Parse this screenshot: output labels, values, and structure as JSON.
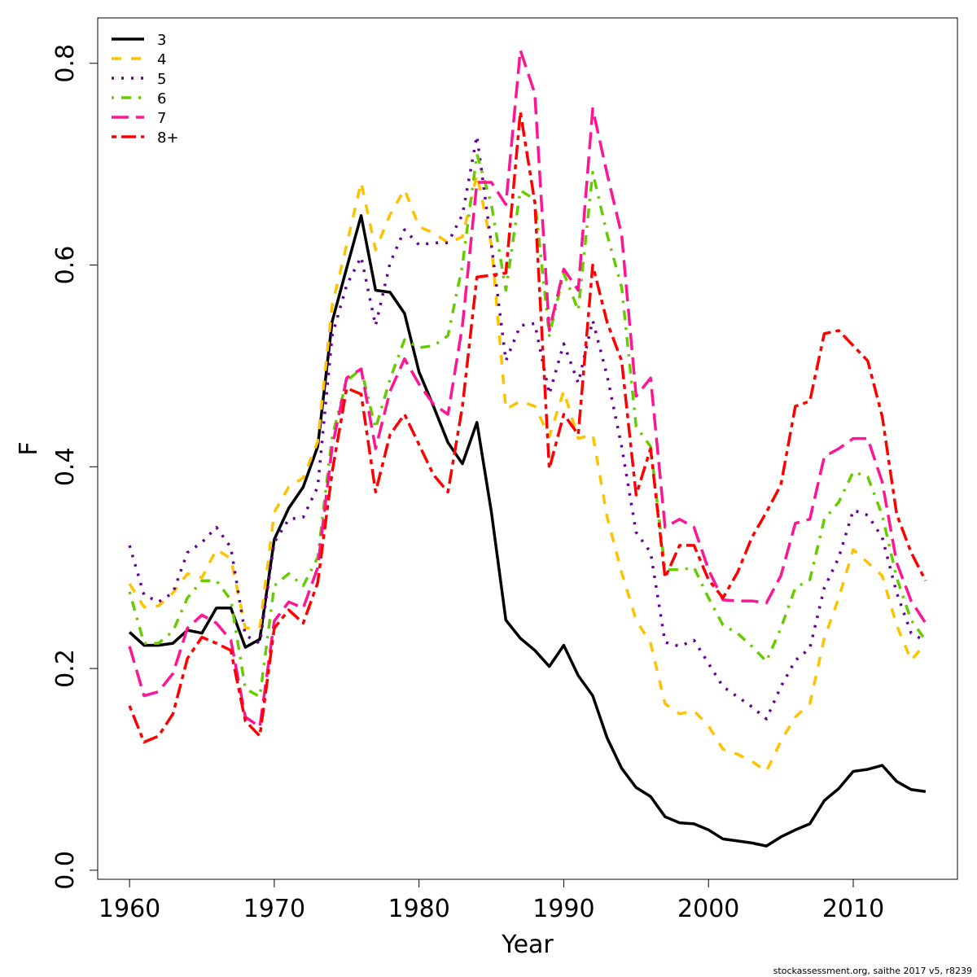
{
  "chart_data": {
    "type": "line",
    "x_label": "Year",
    "y_label": "F",
    "caption": "stockassessment.org, saithe 2017 v5, r8239",
    "x": [
      1960,
      1961,
      1962,
      1963,
      1964,
      1965,
      1966,
      1967,
      1968,
      1969,
      1970,
      1971,
      1972,
      1973,
      1974,
      1975,
      1976,
      1977,
      1978,
      1979,
      1980,
      1981,
      1982,
      1983,
      1984,
      1985,
      1986,
      1987,
      1988,
      1989,
      1990,
      1991,
      1992,
      1993,
      1994,
      1995,
      1996,
      1997,
      1998,
      1999,
      2000,
      2001,
      2002,
      2003,
      2004,
      2005,
      2006,
      2007,
      2008,
      2009,
      2010,
      2011,
      2012,
      2013,
      2014,
      2015
    ],
    "xlim": [
      1957.8,
      2017.2
    ],
    "xticks": [
      1960,
      1970,
      1980,
      1990,
      2000,
      2010
    ],
    "ylim": [
      -0.009,
      0.845
    ],
    "yticks": [
      {
        "value": 0,
        "label": "0.0"
      },
      0.2,
      0.4,
      0.6,
      0.8
    ],
    "grid": false,
    "legend": "topleft",
    "series": [
      {
        "name": "3",
        "color": "#000000",
        "dash": "solid",
        "values": [
          0.236,
          0.223,
          0.223,
          0.225,
          0.238,
          0.235,
          0.26,
          0.26,
          0.221,
          0.229,
          0.328,
          0.359,
          0.38,
          0.42,
          0.544,
          0.597,
          0.649,
          0.575,
          0.573,
          0.552,
          0.494,
          0.46,
          0.424,
          0.403,
          0.444,
          0.355,
          0.248,
          0.23,
          0.218,
          0.202,
          0.223,
          0.193,
          0.173,
          0.131,
          0.101,
          0.082,
          0.073,
          0.053,
          0.047,
          0.046,
          0.04,
          0.031,
          0.029,
          0.027,
          0.024,
          0.033,
          0.04,
          0.046,
          0.069,
          0.081,
          0.098,
          0.1,
          0.104,
          0.088,
          0.08,
          0.078
        ]
      },
      {
        "name": "4",
        "color": "#FFC200",
        "dash": "dashed",
        "values": [
          0.284,
          0.261,
          0.262,
          0.275,
          0.294,
          0.29,
          0.318,
          0.309,
          0.24,
          0.24,
          0.355,
          0.38,
          0.389,
          0.425,
          0.56,
          0.62,
          0.682,
          0.615,
          0.65,
          0.675,
          0.638,
          0.632,
          0.622,
          0.628,
          0.69,
          0.62,
          0.457,
          0.465,
          0.46,
          0.43,
          0.475,
          0.428,
          0.432,
          0.35,
          0.295,
          0.248,
          0.225,
          0.165,
          0.155,
          0.158,
          0.143,
          0.12,
          0.115,
          0.108,
          0.098,
          0.128,
          0.152,
          0.165,
          0.23,
          0.27,
          0.318,
          0.305,
          0.292,
          0.243,
          0.208,
          0.225
        ]
      },
      {
        "name": "5",
        "color": "#660099",
        "dash": "dotted",
        "values": [
          0.322,
          0.273,
          0.266,
          0.275,
          0.315,
          0.325,
          0.34,
          0.32,
          0.233,
          0.225,
          0.325,
          0.348,
          0.35,
          0.38,
          0.53,
          0.58,
          0.608,
          0.54,
          0.602,
          0.635,
          0.62,
          0.622,
          0.622,
          0.65,
          0.728,
          0.62,
          0.505,
          0.54,
          0.542,
          0.472,
          0.522,
          0.483,
          0.545,
          0.49,
          0.42,
          0.335,
          0.315,
          0.226,
          0.222,
          0.228,
          0.205,
          0.182,
          0.172,
          0.162,
          0.15,
          0.182,
          0.208,
          0.22,
          0.28,
          0.31,
          0.357,
          0.352,
          0.33,
          0.275,
          0.235,
          0.227
        ]
      },
      {
        "name": "6",
        "color": "#66CC00",
        "dash": "dotdash",
        "values": [
          0.276,
          0.225,
          0.225,
          0.237,
          0.27,
          0.287,
          0.287,
          0.268,
          0.18,
          0.172,
          0.282,
          0.294,
          0.282,
          0.31,
          0.43,
          0.485,
          0.497,
          0.438,
          0.487,
          0.526,
          0.518,
          0.52,
          0.53,
          0.6,
          0.71,
          0.66,
          0.575,
          0.674,
          0.665,
          0.53,
          0.592,
          0.555,
          0.692,
          0.63,
          0.578,
          0.44,
          0.42,
          0.298,
          0.298,
          0.3,
          0.27,
          0.243,
          0.235,
          0.222,
          0.207,
          0.24,
          0.28,
          0.288,
          0.348,
          0.365,
          0.395,
          0.39,
          0.352,
          0.29,
          0.248,
          0.228
        ]
      },
      {
        "name": "7",
        "color": "#FF1493",
        "dash": "longdash",
        "values": [
          0.222,
          0.173,
          0.177,
          0.195,
          0.24,
          0.253,
          0.245,
          0.228,
          0.152,
          0.142,
          0.247,
          0.266,
          0.26,
          0.3,
          0.42,
          0.488,
          0.497,
          0.418,
          0.475,
          0.507,
          0.482,
          0.462,
          0.452,
          0.54,
          0.682,
          0.682,
          0.66,
          0.813,
          0.77,
          0.535,
          0.596,
          0.575,
          0.755,
          0.69,
          0.63,
          0.47,
          0.488,
          0.34,
          0.348,
          0.34,
          0.298,
          0.268,
          0.267,
          0.267,
          0.265,
          0.292,
          0.344,
          0.348,
          0.41,
          0.418,
          0.428,
          0.428,
          0.385,
          0.305,
          0.267,
          0.245
        ]
      },
      {
        "name": "8+",
        "color": "#FF0000",
        "dash": "twodash",
        "values": [
          0.163,
          0.127,
          0.133,
          0.155,
          0.21,
          0.231,
          0.225,
          0.218,
          0.148,
          0.133,
          0.24,
          0.258,
          0.245,
          0.285,
          0.395,
          0.478,
          0.472,
          0.375,
          0.432,
          0.452,
          0.422,
          0.392,
          0.375,
          0.46,
          0.588,
          0.59,
          0.592,
          0.752,
          0.662,
          0.398,
          0.452,
          0.432,
          0.6,
          0.543,
          0.505,
          0.372,
          0.418,
          0.29,
          0.322,
          0.322,
          0.288,
          0.27,
          0.295,
          0.33,
          0.355,
          0.382,
          0.46,
          0.465,
          0.532,
          0.535,
          0.52,
          0.505,
          0.45,
          0.353,
          0.315,
          0.287
        ]
      }
    ]
  }
}
